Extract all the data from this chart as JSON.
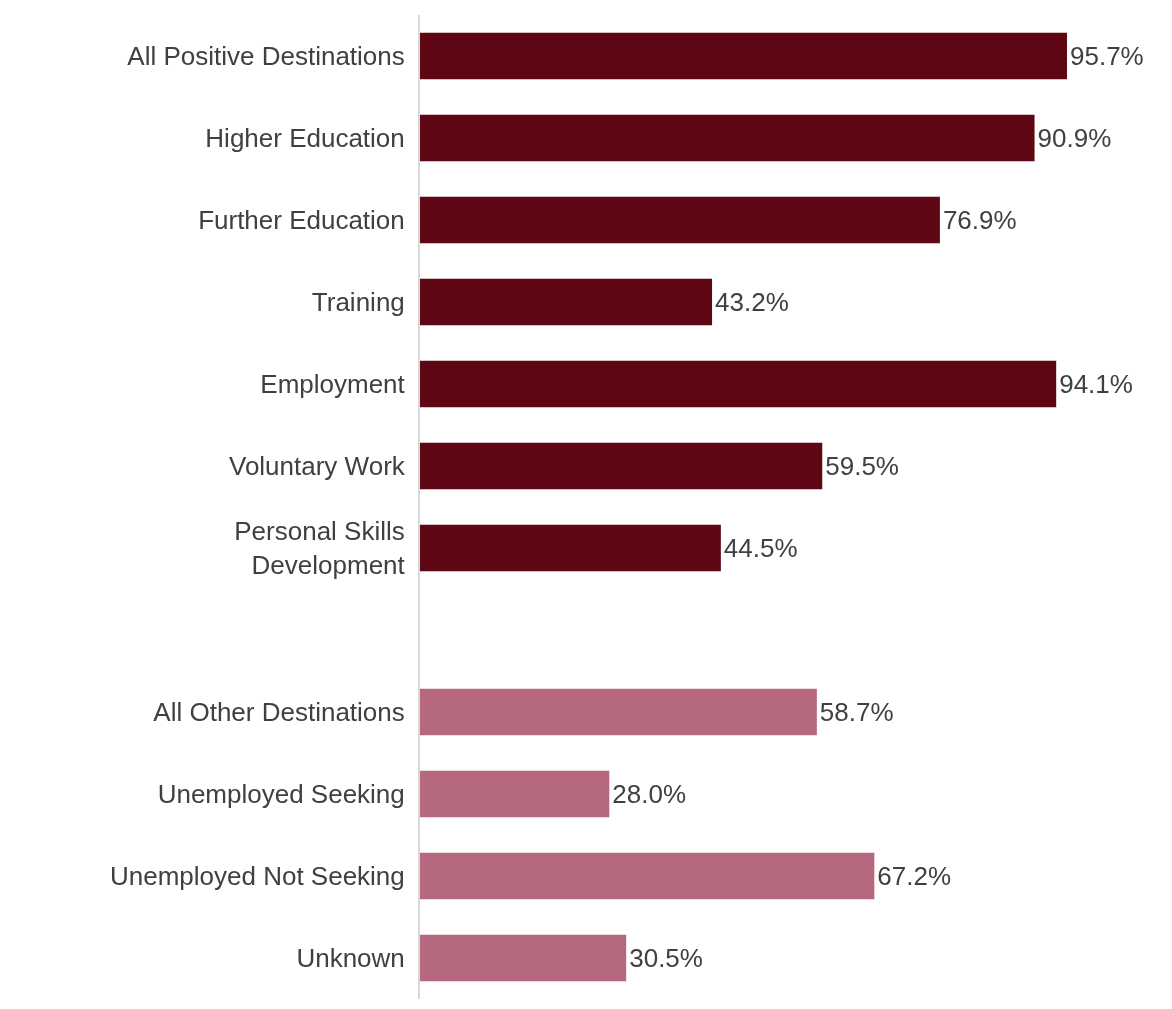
{
  "chart_data": {
    "type": "bar",
    "orientation": "horizontal",
    "categories": [
      "All Positive Destinations",
      "Higher Education",
      "Further Education",
      "Training",
      "Employment",
      "Voluntary Work",
      "Personal Skills Development",
      null,
      "All Other Destinations",
      "Unemployed Seeking",
      "Unemployed Not Seeking",
      "Unknown"
    ],
    "values": [
      95.7,
      90.9,
      76.9,
      43.2,
      94.1,
      59.5,
      44.5,
      null,
      58.7,
      28.0,
      67.2,
      30.5
    ],
    "colors": [
      "#5e0613",
      "#5e0613",
      "#5e0613",
      "#5e0613",
      "#5e0613",
      "#5e0613",
      "#5e0613",
      null,
      "#b5687e",
      "#b5687e",
      "#b5687e",
      "#b5687e"
    ],
    "value_labels": [
      "95.7%",
      "90.9%",
      "76.9%",
      "43.2%",
      "94.1%",
      "59.5%",
      "44.5%",
      null,
      "58.7%",
      "28.0%",
      "67.2%",
      "30.5%"
    ]
  }
}
